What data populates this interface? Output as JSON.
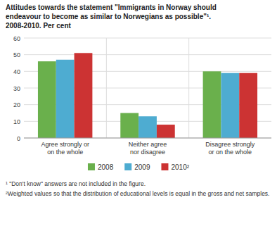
{
  "chart_data": {
    "type": "bar",
    "title": "Attitudes towards the statement \"Immigrants in Norway should\nendeavour to become as similar to Norwegians as possible\"¹.\n2008-2010. Per cent",
    "categories": [
      "Agree strongly or\non the whole",
      "Neither agree\nnor disagree",
      "Disagree strongly\nor on the whole"
    ],
    "series": [
      {
        "name": "2008",
        "color": "#6ab04c",
        "values": [
          46,
          15,
          40
        ]
      },
      {
        "name": "2009",
        "color": "#4eacd1",
        "values": [
          47,
          13,
          39
        ]
      },
      {
        "name": "2010²",
        "color": "#cc3333",
        "values": [
          51,
          8,
          39
        ]
      }
    ],
    "ylim": [
      0,
      60
    ],
    "yticks": [
      0,
      10,
      20,
      30,
      40,
      50,
      60
    ],
    "grid": true,
    "legend": "bottom",
    "annotations": [
      "¹ \"Don't know\" answers are not included in the figure.",
      "²Weighted values so that the distribution of educational levels is equal in the gross and net samples."
    ]
  }
}
